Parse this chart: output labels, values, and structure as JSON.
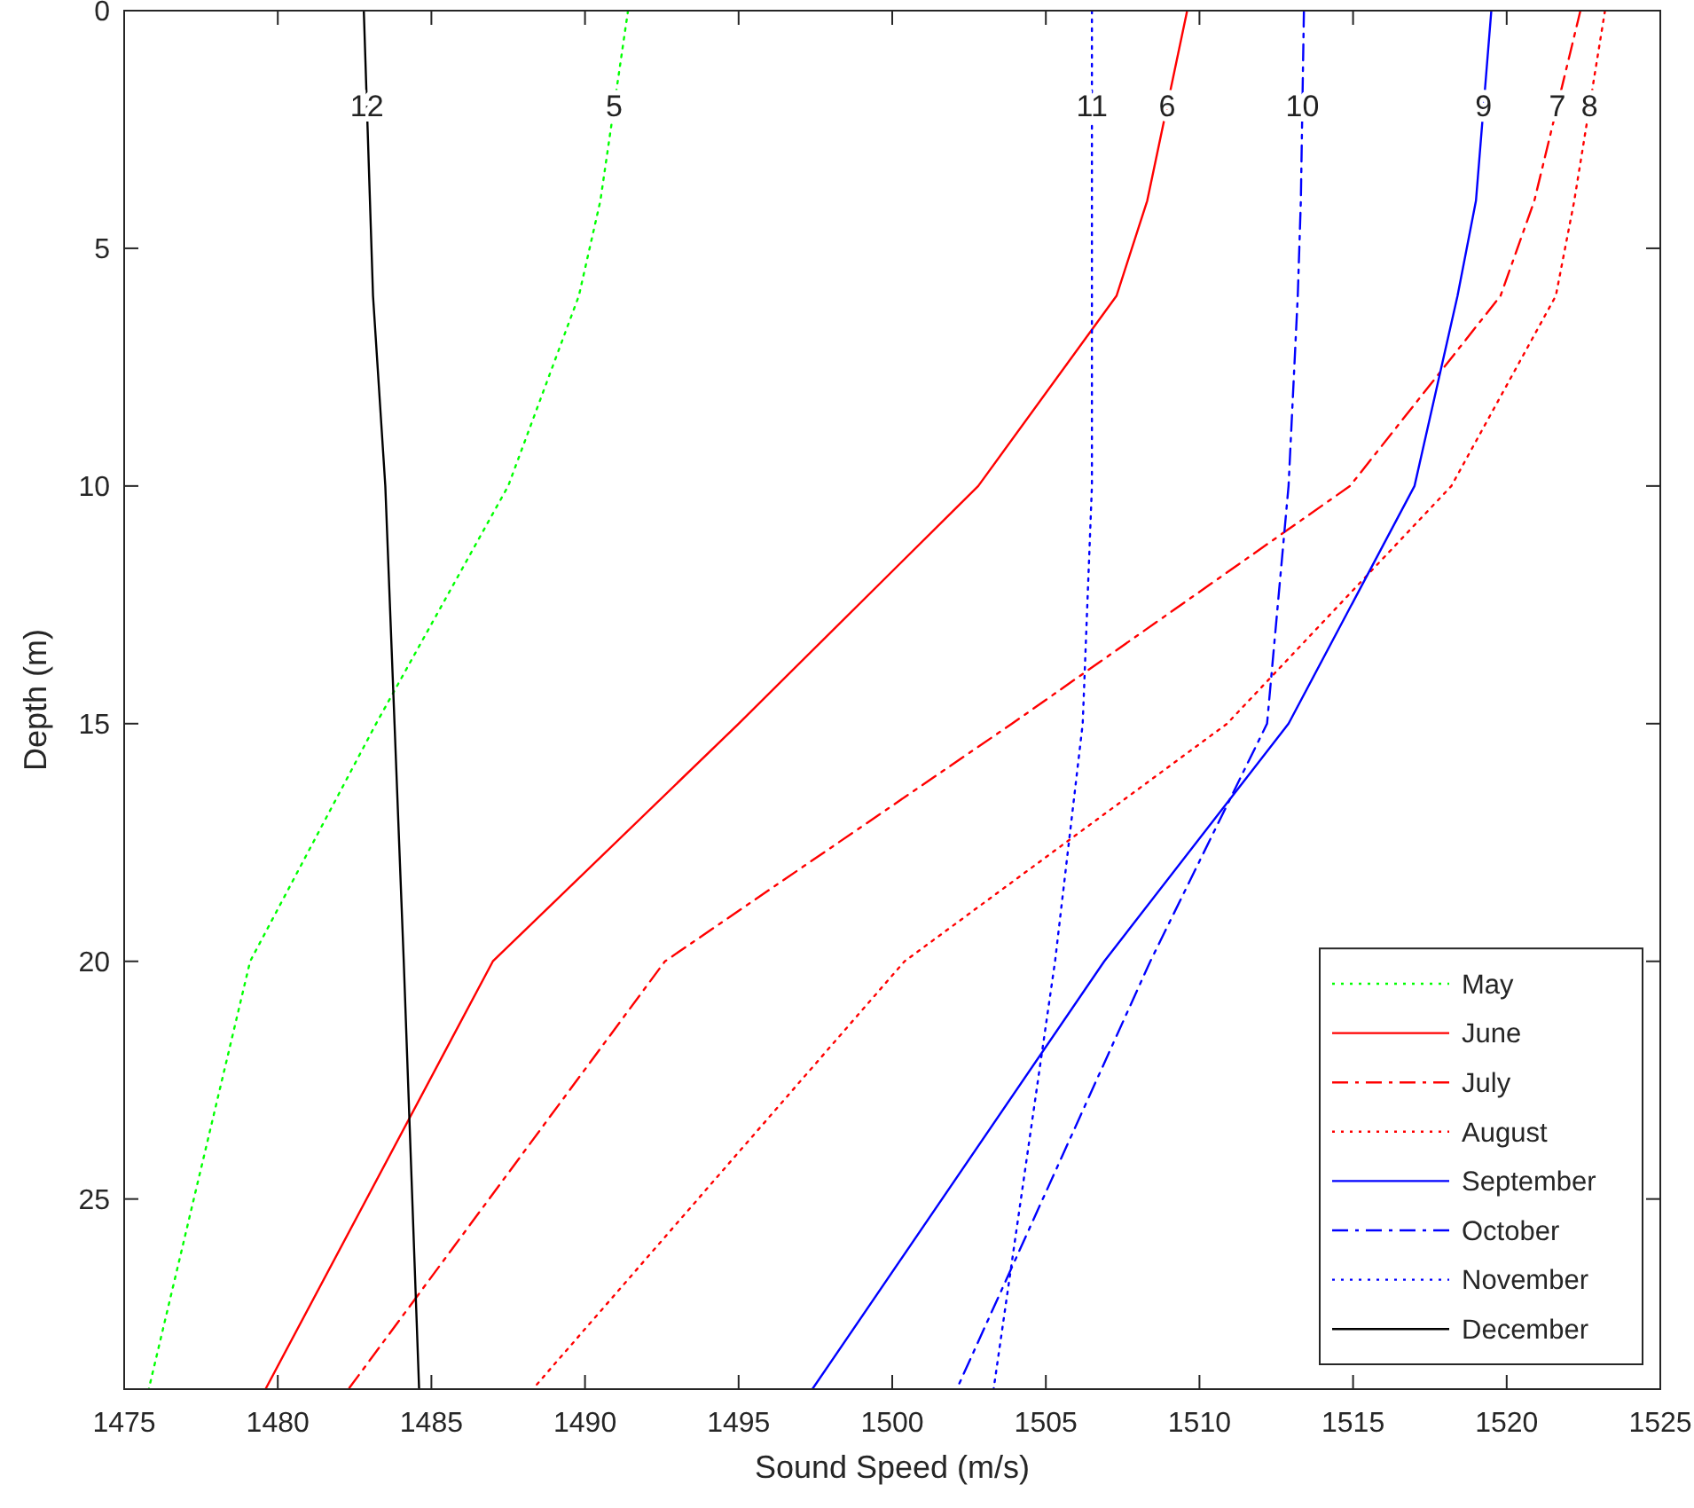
{
  "chart_data": {
    "type": "line",
    "xlabel": "Sound Speed (m/s)",
    "ylabel": "Depth (m)",
    "xlim": [
      1475,
      1525
    ],
    "xticks": [
      1475,
      1480,
      1485,
      1490,
      1495,
      1500,
      1505,
      1510,
      1515,
      1520,
      1525
    ],
    "ylim": [
      29,
      0
    ],
    "yticks": [
      0,
      5,
      10,
      15,
      20,
      25
    ],
    "grid": false,
    "legend": "bottom right",
    "marker": "none",
    "series": [
      {
        "name": "May",
        "color": "#00ff00",
        "line_style": "dotted",
        "x": [
          1491.4,
          1490.5,
          1489.8,
          1487.5,
          1483.2,
          1479.1,
          1475.8
        ],
        "values": [
          0,
          4,
          6,
          10,
          15,
          20,
          29
        ]
      },
      {
        "name": "June",
        "color": "#ff0000",
        "line_style": "solid",
        "x": [
          1509.6,
          1508.3,
          1507.3,
          1502.8,
          1495.0,
          1487.0,
          1479.6
        ],
        "values": [
          0,
          4,
          6,
          10,
          15,
          20,
          29
        ]
      },
      {
        "name": "July",
        "color": "#ff0000",
        "line_style": "dashdot",
        "x": [
          1522.4,
          1520.9,
          1519.8,
          1514.9,
          1503.9,
          1492.6,
          1482.3
        ],
        "values": [
          0,
          4,
          6,
          10,
          15,
          20,
          29
        ]
      },
      {
        "name": "August",
        "color": "#ff0000",
        "line_style": "dotted",
        "x": [
          1523.2,
          1522.2,
          1521.6,
          1518.2,
          1510.9,
          1500.4,
          1488.3
        ],
        "values": [
          0,
          4,
          6,
          10,
          15,
          20,
          29
        ]
      },
      {
        "name": "September",
        "color": "#0000ff",
        "line_style": "solid",
        "x": [
          1519.5,
          1519.0,
          1518.4,
          1517.0,
          1512.9,
          1506.9,
          1497.4
        ],
        "values": [
          0,
          4,
          6,
          10,
          15,
          20,
          29
        ]
      },
      {
        "name": "October",
        "color": "#0000ff",
        "line_style": "dashdot",
        "x": [
          1513.4,
          1513.3,
          1513.2,
          1512.9,
          1512.2,
          1508.4,
          1502.1
        ],
        "values": [
          0,
          4,
          6,
          10,
          15,
          20,
          29
        ]
      },
      {
        "name": "November",
        "color": "#0000ff",
        "line_style": "dotted",
        "x": [
          1506.5,
          1506.5,
          1506.5,
          1506.5,
          1506.2,
          1505.3,
          1503.3
        ],
        "values": [
          0,
          4,
          6,
          10,
          15,
          20,
          29
        ]
      },
      {
        "name": "December",
        "color": "#000000",
        "line_style": "solid",
        "x": [
          1482.8,
          1483.0,
          1483.1,
          1483.5,
          1483.8,
          1484.1,
          1484.6
        ],
        "values": [
          0,
          4,
          6,
          10,
          15,
          20,
          29
        ]
      }
    ],
    "annotations": [
      {
        "text": "12",
        "x": 1482.9,
        "y": 2
      },
      {
        "text": "5",
        "x": 1490.95,
        "y": 2
      },
      {
        "text": "11",
        "x": 1506.5,
        "y": 2
      },
      {
        "text": "6",
        "x": 1508.95,
        "y": 2
      },
      {
        "text": "10",
        "x": 1513.35,
        "y": 2
      },
      {
        "text": "9",
        "x": 1519.25,
        "y": 2
      },
      {
        "text": "7",
        "x": 1521.65,
        "y": 2
      },
      {
        "text": "8",
        "x": 1522.7,
        "y": 2
      }
    ]
  }
}
